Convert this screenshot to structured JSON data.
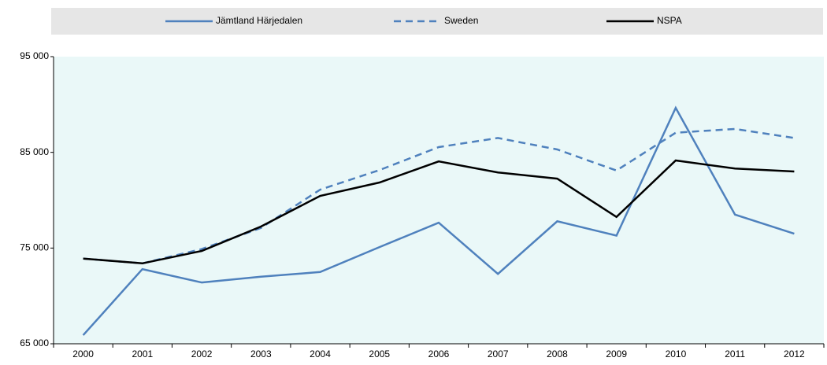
{
  "chart_data": {
    "type": "line",
    "categories": [
      "2000",
      "2001",
      "2002",
      "2003",
      "2004",
      "2005",
      "2006",
      "2007",
      "2008",
      "2009",
      "2010",
      "2011",
      "2012"
    ],
    "series": [
      {
        "name": "Jämtland Härjedalen",
        "color": "#4f81bd",
        "line_style": "solid",
        "values": [
          65900,
          72800,
          71400,
          72000,
          72500,
          75100,
          77650,
          72300,
          77800,
          76300,
          89650,
          78500,
          76500
        ]
      },
      {
        "name": "Sweden",
        "color": "#4f81bd",
        "line_style": "dashed",
        "values": [
          73900,
          73400,
          74900,
          77100,
          81100,
          83150,
          85550,
          86500,
          85300,
          83100,
          87050,
          87450,
          86500
        ]
      },
      {
        "name": "NSPA",
        "color": "#000000",
        "line_style": "solid",
        "values": [
          73900,
          73400,
          74700,
          77250,
          80450,
          81850,
          84050,
          82900,
          82250,
          78250,
          84150,
          83300,
          83000
        ]
      }
    ],
    "ylim": [
      65000,
      95000
    ],
    "yticks": [
      {
        "value": 65000,
        "label": "65 000"
      },
      {
        "value": 75000,
        "label": "75 000"
      },
      {
        "value": 85000,
        "label": "85 000"
      },
      {
        "value": 95000,
        "label": "95 000"
      }
    ],
    "grid": false
  }
}
